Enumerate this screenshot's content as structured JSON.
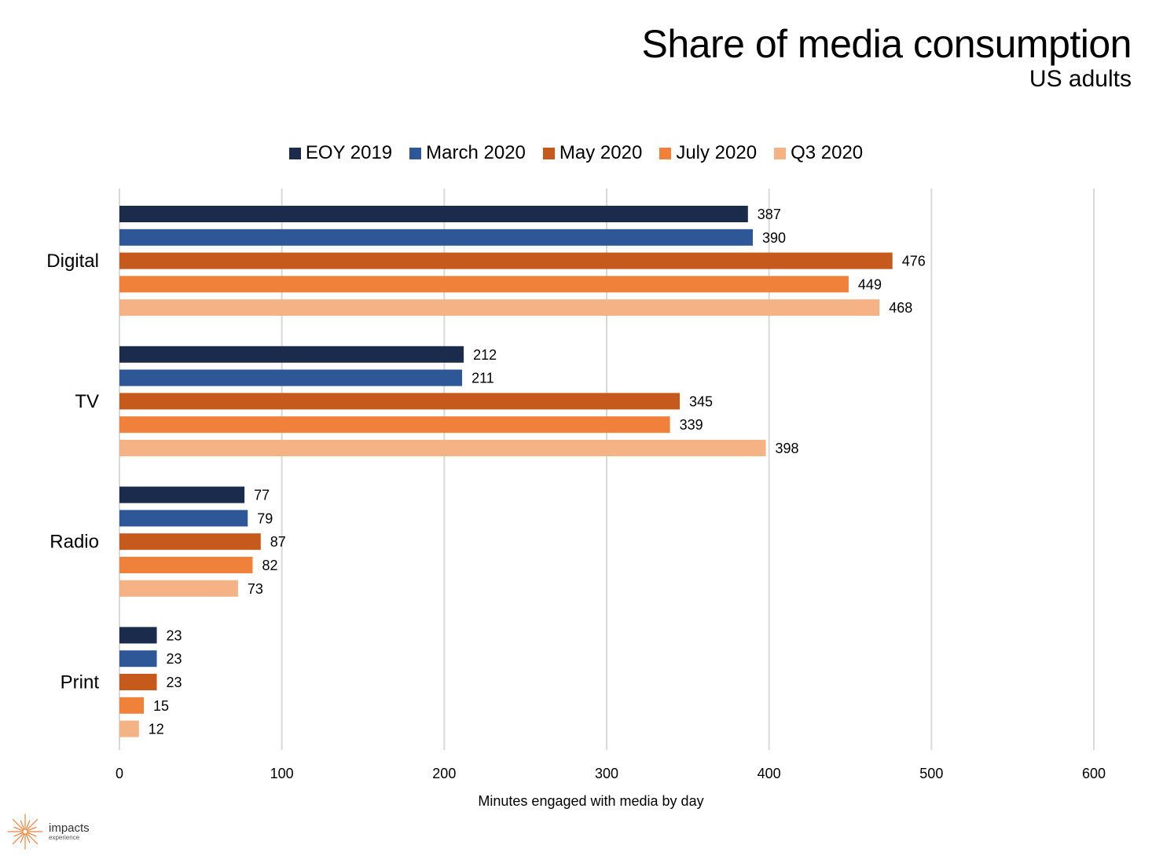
{
  "title": "Share of media consumption",
  "subtitle": "US adults",
  "brand": {
    "name": "impacts",
    "tagline": "experience",
    "icon": "sunburst-logo-icon",
    "color": "#F0813A"
  },
  "chart_data": {
    "type": "bar",
    "orientation": "horizontal",
    "categories": [
      "Digital",
      "TV",
      "Radio",
      "Print"
    ],
    "series": [
      {
        "name": "EOY 2019",
        "color": "#1A2B4C",
        "values": [
          387,
          212,
          77,
          23
        ]
      },
      {
        "name": "March 2020",
        "color": "#2E5797",
        "values": [
          390,
          211,
          79,
          23
        ]
      },
      {
        "name": "May 2020",
        "color": "#C55A1C",
        "values": [
          476,
          345,
          87,
          23
        ]
      },
      {
        "name": "July 2020",
        "color": "#F0813A",
        "values": [
          449,
          339,
          82,
          15
        ]
      },
      {
        "name": "Q3 2020",
        "color": "#F5B285",
        "values": [
          468,
          398,
          73,
          12
        ]
      }
    ],
    "xlabel": "Minutes engaged with media by day",
    "xlim": [
      0,
      600
    ],
    "xticks": [
      0,
      100,
      200,
      300,
      400,
      500,
      600
    ],
    "grid": "vertical",
    "legend_position": "top",
    "data_labels": true
  }
}
